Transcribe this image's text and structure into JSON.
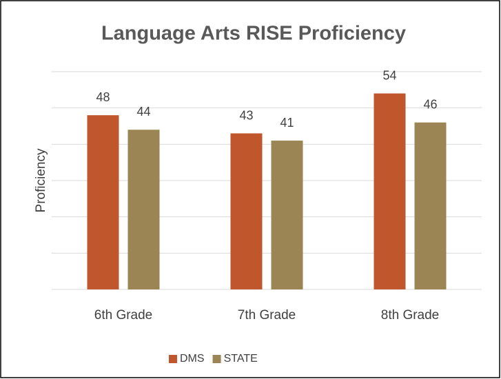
{
  "chart_data": {
    "type": "bar",
    "title": "Language Arts RISE Proficiency",
    "y_label": "Proficiency",
    "categories": [
      "6th Grade",
      "7th Grade",
      "8th Grade"
    ],
    "series": [
      {
        "name": "DMS",
        "color": "#c0562b",
        "values": [
          48,
          43,
          54
        ]
      },
      {
        "name": "STATE",
        "color": "#9c8555",
        "values": [
          44,
          41,
          46
        ]
      }
    ],
    "ylim": [
      0,
      60
    ],
    "yticks": [
      0,
      10,
      20,
      30,
      40,
      50,
      60
    ],
    "grid": true,
    "legend": "bottom"
  }
}
